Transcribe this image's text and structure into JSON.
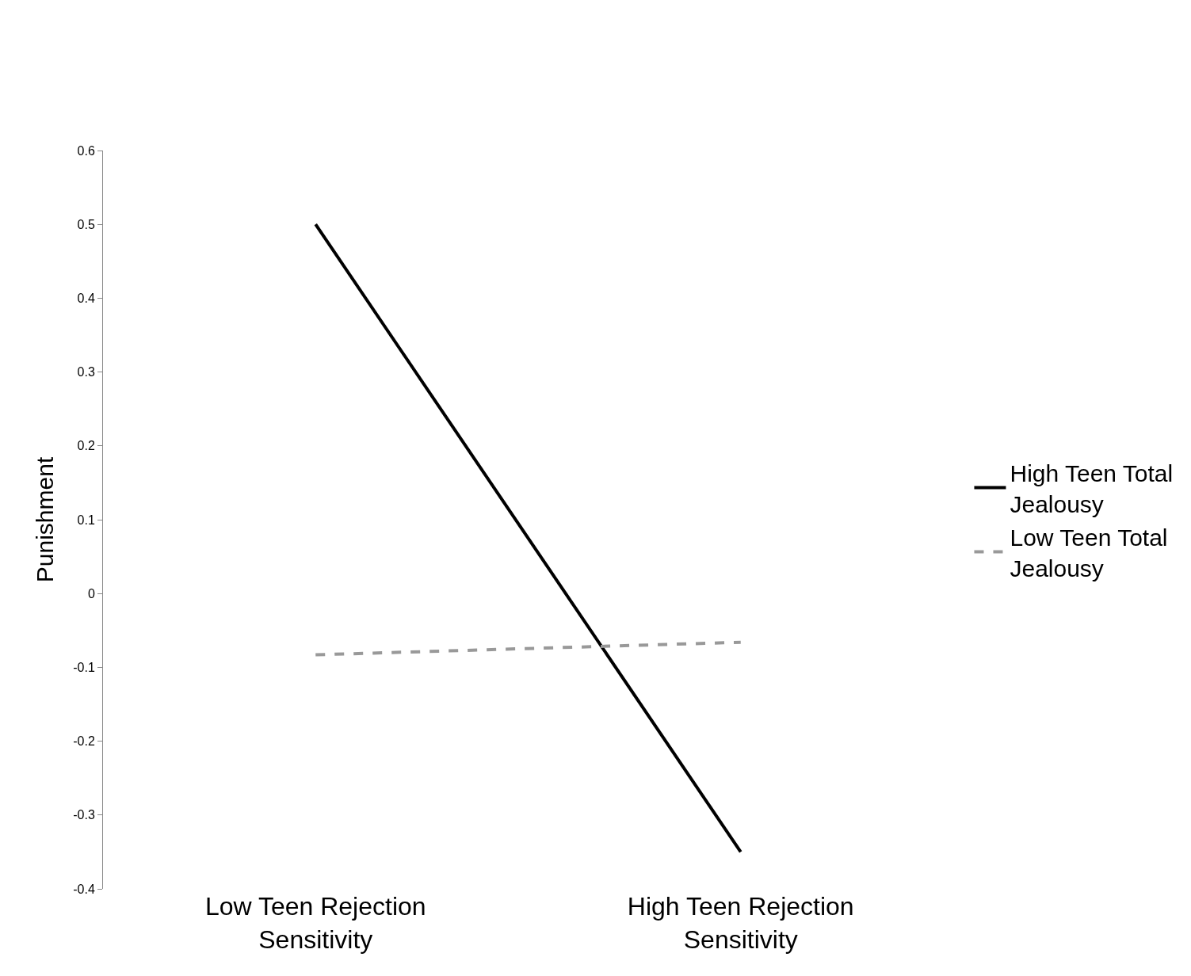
{
  "chart_data": {
    "type": "line",
    "ylabel": "Punishment",
    "categories": [
      "Low Teen Rejection Sensitivity",
      "High Teen Rejection Sensitivity"
    ],
    "series": [
      {
        "name": "High Teen Total Jealousy",
        "color": "#000000",
        "values": [
          0.5,
          -0.35
        ],
        "line_style": "solid"
      },
      {
        "name": "Low Teen Total Jealousy",
        "color": "#999999",
        "values": [
          -0.083,
          -0.066
        ],
        "line_style": "dashed"
      }
    ],
    "ylim": [
      -0.4,
      0.6
    ],
    "yticks": [
      -0.4,
      -0.3,
      -0.2,
      -0.1,
      0,
      0.1,
      0.2,
      0.3,
      0.4,
      0.5,
      0.6
    ],
    "legend": "right",
    "marker": "none"
  }
}
